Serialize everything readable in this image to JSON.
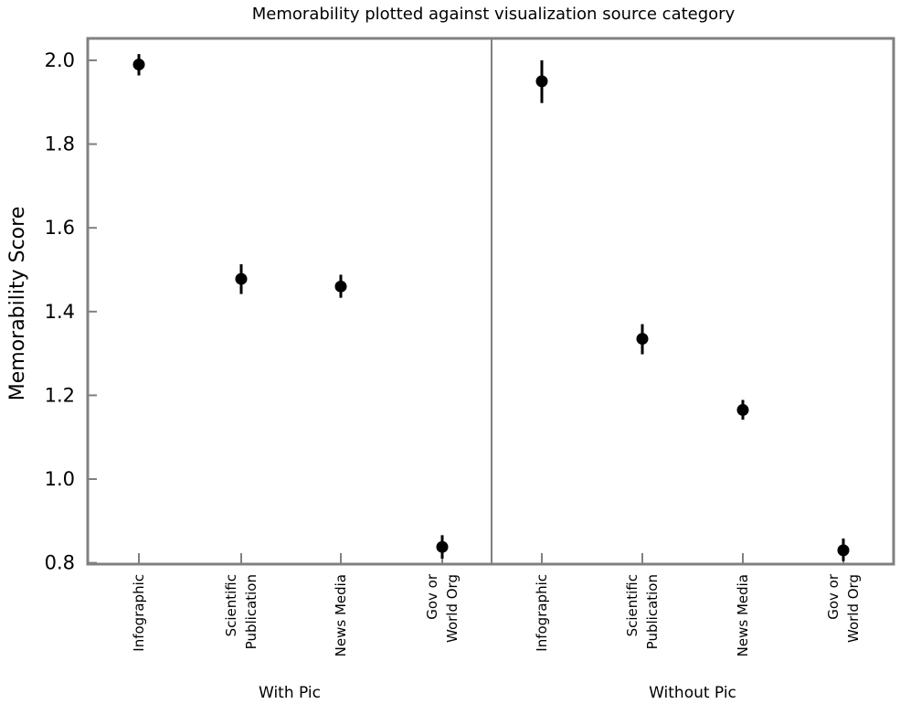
{
  "chart_data": {
    "type": "scatter",
    "title": "Memorability plotted against visualization source category",
    "ylabel": "Memorability Score",
    "xlabel": "",
    "ylim": [
      0.77,
      2.05
    ],
    "yticks": [
      "0.8",
      "1.0",
      "1.2",
      "1.4",
      "1.6",
      "1.8",
      "2.0"
    ],
    "grid": false,
    "colors": {
      "frame": "#808080",
      "marker": "#000000"
    },
    "panels": [
      {
        "group_label": "With Pic",
        "categories": [
          [
            "Infographic"
          ],
          [
            "Scientific",
            "Publication"
          ],
          [
            "News Media"
          ],
          [
            "Gov or",
            "World Org"
          ]
        ],
        "values": [
          1.99,
          1.478,
          1.46,
          0.838
        ],
        "error_low": [
          1.964,
          1.442,
          1.433,
          0.81
        ],
        "error_high": [
          2.015,
          1.513,
          1.488,
          0.866
        ]
      },
      {
        "group_label": "Without Pic",
        "categories": [
          [
            "Infographic"
          ],
          [
            "Scientific",
            "Publication"
          ],
          [
            "News Media"
          ],
          [
            "Gov or",
            "World Org"
          ]
        ],
        "values": [
          1.95,
          1.335,
          1.165,
          0.83
        ],
        "error_low": [
          1.898,
          1.298,
          1.142,
          0.804
        ],
        "error_high": [
          2.0,
          1.37,
          1.189,
          0.858
        ]
      }
    ]
  }
}
